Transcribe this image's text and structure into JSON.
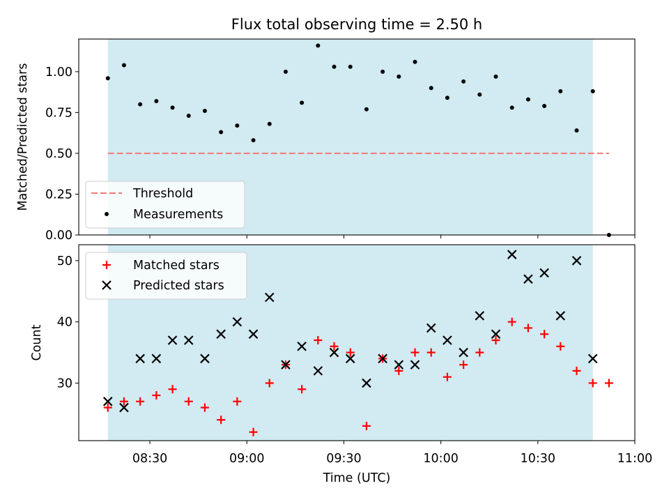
{
  "chart_data": {
    "title": "Flux total observing time = 2.50 h",
    "xlabel": "Time (UTC)",
    "x_ticks": [
      "08:30",
      "09:00",
      "09:30",
      "10:00",
      "10:30",
      "11:00"
    ],
    "x_tick_minutes": [
      510,
      540,
      570,
      600,
      630,
      660
    ],
    "xlim": [
      "08:08",
      "11:00"
    ],
    "shaded_span": [
      "08:17",
      "10:47"
    ],
    "colors": {
      "shade": "#add8e6",
      "threshold": "#f08080",
      "measurements": "#000000",
      "matched": "#ff0000",
      "predicted": "#000000"
    },
    "panels": [
      {
        "type": "scatter",
        "ylabel": "Matched/Predicted stars",
        "ylim": [
          0,
          1.2
        ],
        "y_ticks": [
          "0.00",
          "0.25",
          "0.50",
          "0.75",
          "1.00"
        ],
        "legend_position": "lower-left",
        "series": [
          {
            "name": "Threshold",
            "type": "line",
            "style": "dashed",
            "x": [
              "08:17",
              "10:52"
            ],
            "y": [
              0.5,
              0.5
            ]
          },
          {
            "name": "Measurements",
            "type": "scatter",
            "marker": "dot",
            "x": [
              "08:17",
              "08:22",
              "08:27",
              "08:32",
              "08:37",
              "08:42",
              "08:47",
              "08:52",
              "08:57",
              "09:02",
              "09:07",
              "09:12",
              "09:17",
              "09:22",
              "09:27",
              "09:32",
              "09:37",
              "09:42",
              "09:47",
              "09:52",
              "09:57",
              "10:02",
              "10:07",
              "10:12",
              "10:17",
              "10:22",
              "10:27",
              "10:32",
              "10:37",
              "10:42",
              "10:47",
              "10:52"
            ],
            "y": [
              0.96,
              1.04,
              0.8,
              0.82,
              0.78,
              0.73,
              0.76,
              0.63,
              0.67,
              0.58,
              0.68,
              1.0,
              0.81,
              1.16,
              1.03,
              1.03,
              0.77,
              1.0,
              0.97,
              1.06,
              0.9,
              0.84,
              0.94,
              0.86,
              0.97,
              0.78,
              0.83,
              0.79,
              0.88,
              0.64,
              0.88,
              0.0
            ]
          }
        ]
      },
      {
        "type": "scatter",
        "ylabel": "Count",
        "ylim": [
          20.6,
          52.6
        ],
        "y_ticks": [
          "30",
          "40",
          "50"
        ],
        "legend_position": "top-left",
        "series": [
          {
            "name": "Matched stars",
            "type": "scatter",
            "marker": "plus",
            "x": [
              "08:17",
              "08:22",
              "08:27",
              "08:32",
              "08:37",
              "08:42",
              "08:47",
              "08:52",
              "08:57",
              "09:02",
              "09:07",
              "09:12",
              "09:17",
              "09:22",
              "09:27",
              "09:32",
              "09:37",
              "09:42",
              "09:47",
              "09:52",
              "09:57",
              "10:02",
              "10:07",
              "10:12",
              "10:17",
              "10:22",
              "10:27",
              "10:32",
              "10:37",
              "10:42",
              "10:47",
              "10:52"
            ],
            "y": [
              26,
              27,
              27,
              28,
              29,
              27,
              26,
              24,
              27,
              22,
              30,
              33,
              29,
              37,
              36,
              35,
              23,
              34,
              32,
              35,
              35,
              31,
              33,
              35,
              37,
              40,
              39,
              38,
              36,
              32,
              30,
              30
            ]
          },
          {
            "name": "Predicted stars",
            "type": "scatter",
            "marker": "x",
            "x": [
              "08:17",
              "08:22",
              "08:27",
              "08:32",
              "08:37",
              "08:42",
              "08:47",
              "08:52",
              "08:57",
              "09:02",
              "09:07",
              "09:12",
              "09:17",
              "09:22",
              "09:27",
              "09:32",
              "09:37",
              "09:42",
              "09:47",
              "09:52",
              "09:57",
              "10:02",
              "10:07",
              "10:12",
              "10:17",
              "10:22",
              "10:27",
              "10:32",
              "10:37",
              "10:42",
              "10:47"
            ],
            "y": [
              27,
              26,
              34,
              34,
              37,
              37,
              34,
              38,
              40,
              38,
              44,
              33,
              36,
              32,
              35,
              34,
              30,
              34,
              33,
              33,
              39,
              37,
              35,
              41,
              38,
              51,
              47,
              48,
              41,
              50,
              34
            ]
          }
        ]
      }
    ]
  }
}
